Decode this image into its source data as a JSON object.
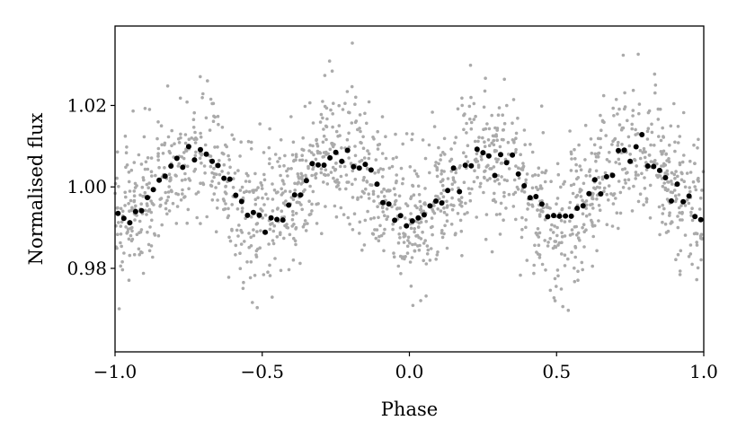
{
  "chart_data": {
    "type": "scatter",
    "title": "",
    "xlabel": "Phase",
    "ylabel": "Normalised flux",
    "xlim": [
      -1.0,
      1.0
    ],
    "ylim": [
      0.9595,
      1.0395
    ],
    "grid": false,
    "legend": "none",
    "x_ticks": [
      {
        "value": -1.0,
        "label": "−1.0"
      },
      {
        "value": -0.5,
        "label": "−0.5"
      },
      {
        "value": 0.0,
        "label": "0.0"
      },
      {
        "value": 0.5,
        "label": "0.5"
      },
      {
        "value": 1.0,
        "label": "1.0"
      }
    ],
    "y_ticks": [
      {
        "value": 0.98,
        "label": "0.98"
      },
      {
        "value": 1.0,
        "label": "1.00"
      },
      {
        "value": 1.02,
        "label": "1.02"
      }
    ],
    "colors": {
      "raw": "#aaaaaa",
      "binned": "#000000"
    },
    "model": {
      "mean": 1.0,
      "amp1": 0.0078,
      "phase1": 0.25,
      "amp2": 0.0015,
      "phase2": 0.375,
      "scatter_sigma": 0.0085,
      "raw_points": 1700,
      "binned_points": 100
    }
  }
}
